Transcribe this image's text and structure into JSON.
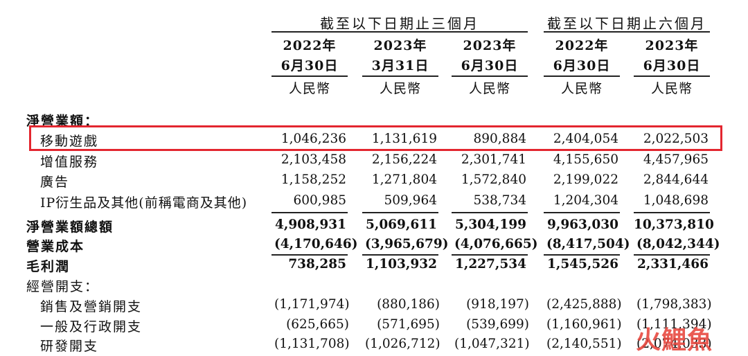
{
  "header": {
    "group_three_months": "截至以下日期止三個月",
    "group_six_months": "截至以下日期止六個月",
    "columns": [
      {
        "year": "2022年",
        "date": "6月30日",
        "currency": "人民幣"
      },
      {
        "year": "2023年",
        "date": "3月31日",
        "currency": "人民幣"
      },
      {
        "year": "2023年",
        "date": "6月30日",
        "currency": "人民幣"
      },
      {
        "year": "2022年",
        "date": "6月30日",
        "currency": "人民幣"
      },
      {
        "year": "2023年",
        "date": "6月30日",
        "currency": "人民幣"
      }
    ]
  },
  "rows": [
    {
      "label": "淨營業額：",
      "values": [
        "",
        "",
        "",
        "",
        ""
      ],
      "bold": false
    },
    {
      "label": "移動遊戲",
      "values": [
        "1,046,236",
        "1,131,619",
        "890,884",
        "2,404,054",
        "2,022,503"
      ],
      "highlighted": true
    },
    {
      "label": "增值服務",
      "values": [
        "2,103,458",
        "2,156,224",
        "2,301,741",
        "4,155,650",
        "4,457,965"
      ]
    },
    {
      "label": "廣告",
      "values": [
        "1,158,252",
        "1,271,804",
        "1,572,840",
        "2,199,022",
        "2,844,644"
      ]
    },
    {
      "label": "IP衍生品及其他(前稱電商及其他)",
      "values": [
        "600,985",
        "509,964",
        "538,734",
        "1,204,304",
        "1,048,698"
      ]
    },
    {
      "label": "淨營業額總額",
      "values": [
        "4,908,931",
        "5,069,611",
        "5,304,199",
        "9,963,030",
        "10,373,810"
      ],
      "bold": true
    },
    {
      "label": "營業成本",
      "values": [
        "(4,170,646)",
        "(3,965,679)",
        "(4,076,665)",
        "(8,417,504)",
        "(8,042,344)"
      ],
      "bold": true
    },
    {
      "label": "毛利潤",
      "values": [
        "738,285",
        "1,103,932",
        "1,227,534",
        "1,545,526",
        "2,331,466"
      ],
      "bold": true
    },
    {
      "label": "經營開支：",
      "values": [
        "",
        "",
        "",
        "",
        ""
      ]
    },
    {
      "label": "銷售及營銷開支",
      "values": [
        "(1,171,974)",
        "(880,186)",
        "(918,197)",
        "(2,425,888)",
        "(1,798,383)"
      ]
    },
    {
      "label": "一般及行政開支",
      "values": [
        "(625,665)",
        "(571,695)",
        "(539,699)",
        "(1,160,961)",
        "(1,111,394)"
      ]
    },
    {
      "label": "研發開支",
      "values": [
        "(1,131,708)",
        "(1,026,712)",
        "(1,047,321)",
        "(2,140,551)",
        "(2,074,033)"
      ]
    }
  ],
  "watermark": "火鯉魚",
  "colors": {
    "highlight_border": "#e3262f",
    "watermark": "#e8453c"
  }
}
